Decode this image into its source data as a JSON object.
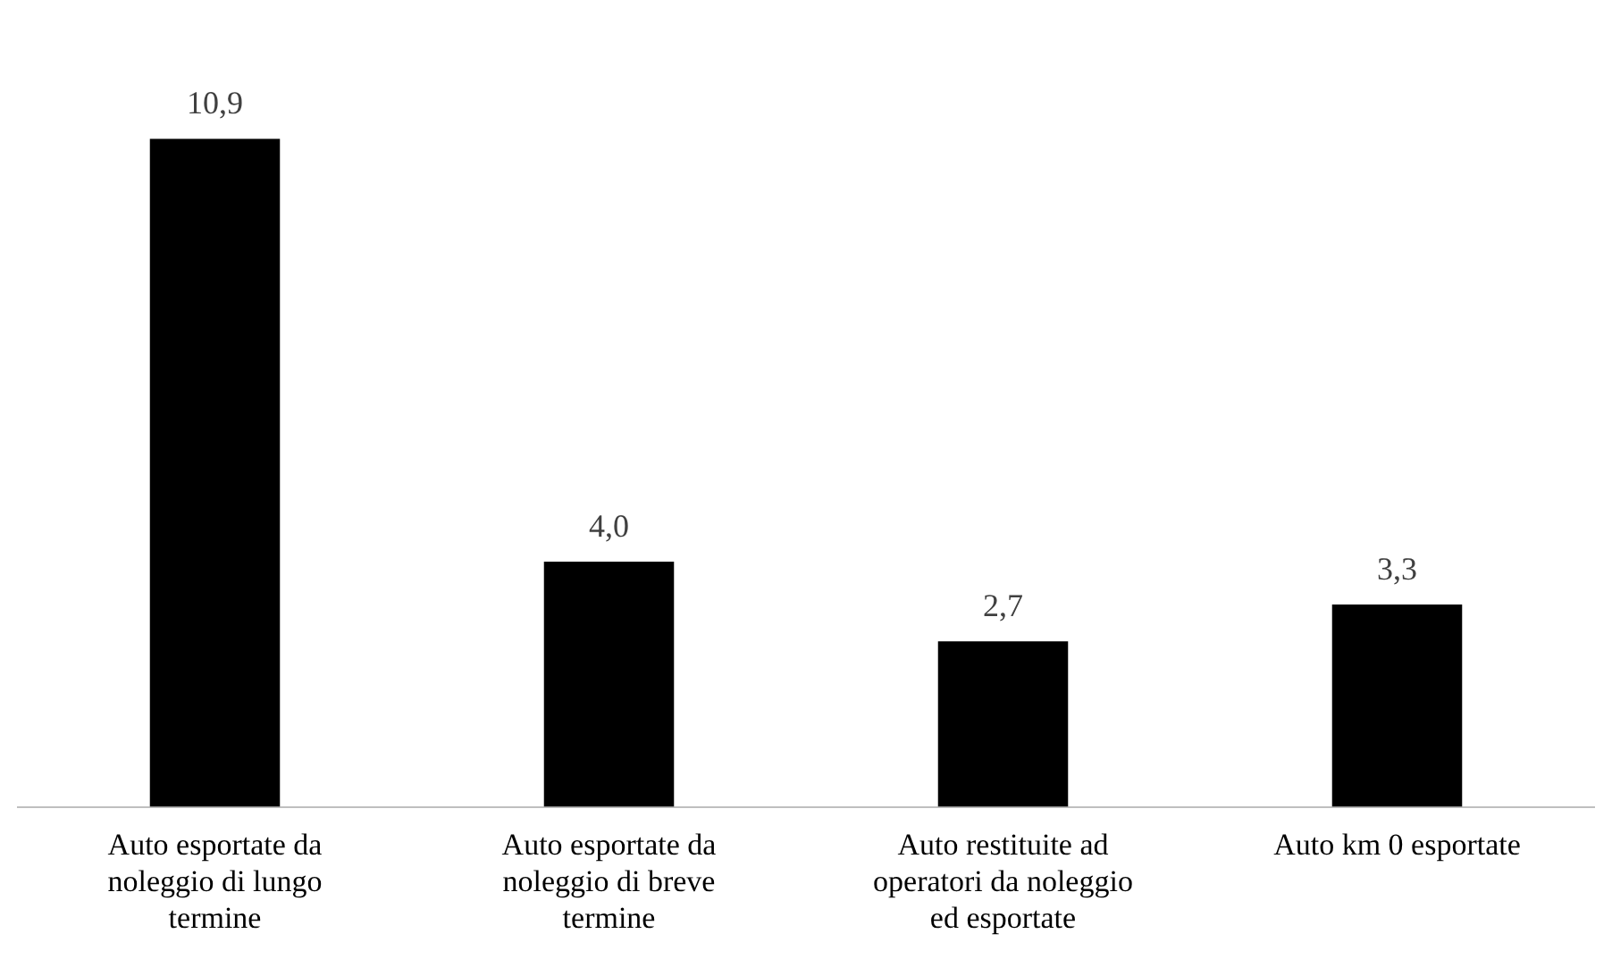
{
  "chart_data": {
    "type": "bar",
    "categories": [
      "Auto esportate da noleggio di lungo termine",
      "Auto esportate da noleggio di breve termine",
      "Auto restituite ad operatori da noleggio ed esportate",
      "Auto km 0 esportate"
    ],
    "values": [
      10.9,
      4.0,
      2.7,
      3.3
    ],
    "color": "#000000",
    "value_labels": [
      "10,9",
      "4,0",
      "2,7",
      "3,3"
    ],
    "grid": false,
    "legend": false
  }
}
